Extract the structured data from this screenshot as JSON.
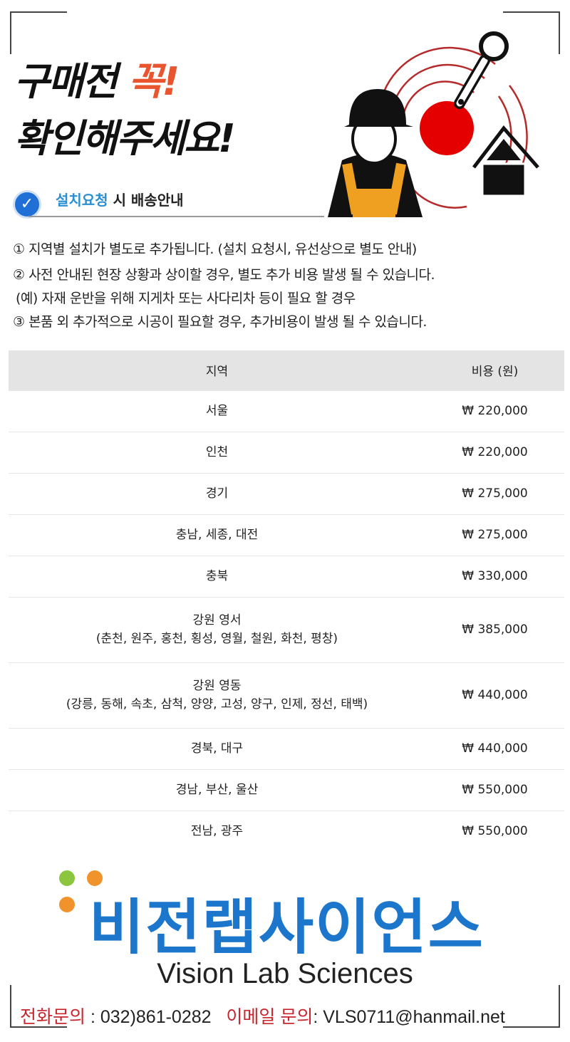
{
  "header": {
    "title_line1_prefix": "구매전 ",
    "title_line1_accent": "꼭!",
    "title_line2": "확인해주세요!",
    "subtitle_highlight": "설치요청",
    "subtitle_rest": " 시 배송안내"
  },
  "notes": [
    "① 지역별 설치가 별도로 추가됩니다. (설치 요청시, 유선상으로 별도 안내)",
    "② 사전 안내된 현장 상황과 상이할 경우, 별도 추가 비용 발생 될 수 있습니다.",
    "(예) 자재 운반을 위해 지게차 또는 사다리차 등이 필요 할 경우",
    "③ 본품 외 추가적으로 시공이 필요할 경우, 추가비용이 발생 될 수 있습니다."
  ],
  "table": {
    "headers": [
      "지역",
      "비용 (원)"
    ],
    "rows": [
      {
        "region": "서울",
        "sub": "",
        "cost": "₩ 220,000"
      },
      {
        "region": "인천",
        "sub": "",
        "cost": "₩ 220,000"
      },
      {
        "region": "경기",
        "sub": "",
        "cost": "₩ 275,000"
      },
      {
        "region": "충남, 세종, 대전",
        "sub": "",
        "cost": "₩ 275,000"
      },
      {
        "region": "충북",
        "sub": "",
        "cost": "₩ 330,000"
      },
      {
        "region": "강원 영서",
        "sub": "(춘천, 원주, 홍천, 횡성, 영월, 철원, 화천, 평창)",
        "cost": "₩ 385,000"
      },
      {
        "region": "강원 영동",
        "sub": "(강릉, 동해, 속초, 삼척, 양양, 고성, 양구, 인제, 정선, 태백)",
        "cost": "₩ 440,000"
      },
      {
        "region": "경북, 대구",
        "sub": "",
        "cost": "₩ 440,000"
      },
      {
        "region": "경남, 부산, 울산",
        "sub": "",
        "cost": "₩ 550,000"
      },
      {
        "region": "전남, 광주",
        "sub": "",
        "cost": "₩ 550,000"
      }
    ]
  },
  "brand": {
    "name_kr": "비전랩사이언스",
    "name_en": "Vision Lab Sciences",
    "colors": {
      "blue": "#1c76cc",
      "green": "#8cc63f",
      "orange": "#f0932b"
    }
  },
  "contact": {
    "phone_label": "전화문의",
    "phone": " : 032)861-0282",
    "email_label": "이메일 문의",
    "email": ": VLS0711@hanmail.net"
  },
  "icons": [
    "worker-icon",
    "wrench-icon",
    "house-icon",
    "check-icon"
  ]
}
